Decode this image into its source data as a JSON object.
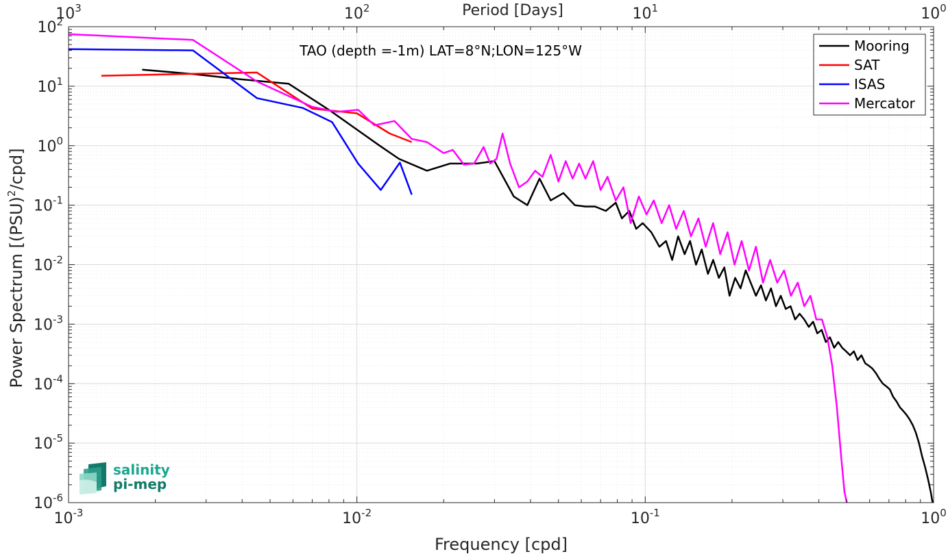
{
  "chart_data": {
    "type": "line",
    "title": "TAO (depth =-1m) LAT=8°N;LON=125°W",
    "xlabel": "Frequency [cpd]",
    "ylabel": "Power Spectrum [(PSU)",
    "ylabel_sup": "2",
    "ylabel_tail": "/cpd]",
    "x2label": "Period [Days]",
    "xscale": "log",
    "yscale": "log",
    "xlim": [
      0.001,
      1
    ],
    "ylim": [
      1e-06,
      100
    ],
    "grid": true,
    "legend_position": "top-right",
    "x_ticks": [
      {
        "value": 0.001,
        "base": "10",
        "exp": "-3"
      },
      {
        "value": 0.01,
        "base": "10",
        "exp": "-2"
      },
      {
        "value": 0.1,
        "base": "10",
        "exp": "-1"
      },
      {
        "value": 1,
        "base": "10",
        "exp": "0"
      }
    ],
    "y_ticks": [
      {
        "value": 100,
        "base": "10",
        "exp": "2"
      },
      {
        "value": 10,
        "base": "10",
        "exp": "1"
      },
      {
        "value": 1,
        "base": "10",
        "exp": "0"
      },
      {
        "value": 0.1,
        "base": "10",
        "exp": "-1"
      },
      {
        "value": 0.01,
        "base": "10",
        "exp": "-2"
      },
      {
        "value": 0.001,
        "base": "10",
        "exp": "-3"
      },
      {
        "value": 0.0001,
        "base": "10",
        "exp": "-4"
      },
      {
        "value": 1e-05,
        "base": "10",
        "exp": "-5"
      },
      {
        "value": 1e-06,
        "base": "10",
        "exp": "-6"
      }
    ],
    "x2_ticks": [
      {
        "value": 1000,
        "base": "10",
        "exp": "3"
      },
      {
        "value": 100,
        "base": "10",
        "exp": "2"
      },
      {
        "value": 10,
        "base": "10",
        "exp": "1"
      },
      {
        "value": 1,
        "base": "10",
        "exp": "0"
      }
    ],
    "series": [
      {
        "name": "Mooring",
        "color": "#000000",
        "x": [
          0.0018,
          0.0027,
          0.004,
          0.0058,
          0.008,
          0.0098,
          0.012,
          0.014,
          0.0175,
          0.021,
          0.026,
          0.03,
          0.035,
          0.039,
          0.043,
          0.047,
          0.052,
          0.057,
          0.062,
          0.067,
          0.073,
          0.079,
          0.083,
          0.088,
          0.093,
          0.098,
          0.105,
          0.112,
          0.118,
          0.124,
          0.13,
          0.137,
          0.143,
          0.15,
          0.157,
          0.165,
          0.172,
          0.18,
          0.188,
          0.196,
          0.205,
          0.214,
          0.223,
          0.232,
          0.242,
          0.252,
          0.262,
          0.273,
          0.284,
          0.295,
          0.307,
          0.319,
          0.331,
          0.343,
          0.356,
          0.369,
          0.382,
          0.395,
          0.409,
          0.423,
          0.437,
          0.452,
          0.467,
          0.482,
          0.497,
          0.513,
          0.529,
          0.545,
          0.562,
          0.579,
          0.596,
          0.613,
          0.631,
          0.649,
          0.667,
          0.686,
          0.705,
          0.724,
          0.744,
          0.764,
          0.784,
          0.805,
          0.826,
          0.847,
          0.868,
          0.89,
          0.912,
          0.934,
          0.956,
          0.978,
          0.992
        ],
        "y": [
          19,
          16,
          13,
          11,
          4,
          2,
          1,
          0.6,
          0.38,
          0.5,
          0.5,
          0.55,
          0.14,
          0.1,
          0.28,
          0.12,
          0.16,
          0.1,
          0.095,
          0.095,
          0.08,
          0.11,
          0.06,
          0.08,
          0.04,
          0.05,
          0.035,
          0.02,
          0.025,
          0.012,
          0.03,
          0.015,
          0.025,
          0.01,
          0.018,
          0.007,
          0.012,
          0.006,
          0.009,
          0.003,
          0.006,
          0.004,
          0.008,
          0.005,
          0.003,
          0.0045,
          0.0025,
          0.004,
          0.002,
          0.003,
          0.0018,
          0.002,
          0.0012,
          0.0015,
          0.0012,
          0.0009,
          0.0011,
          0.0007,
          0.0008,
          0.0005,
          0.0006,
          0.0004,
          0.0005,
          0.0004,
          0.00035,
          0.0003,
          0.00035,
          0.00025,
          0.0003,
          0.00022,
          0.0002,
          0.00018,
          0.00015,
          0.00012,
          0.0001,
          9e-05,
          8e-05,
          6e-05,
          5e-05,
          4e-05,
          3.5e-05,
          3e-05,
          2.5e-05,
          2e-05,
          1.5e-05,
          1e-05,
          6e-06,
          4e-06,
          2.5e-06,
          1.5e-06,
          1e-06
        ]
      },
      {
        "name": "SAT",
        "color": "#ff0000",
        "x": [
          0.0013,
          0.0045,
          0.007,
          0.01,
          0.013,
          0.0155
        ],
        "y": [
          15,
          17,
          4.2,
          3.5,
          1.6,
          1.15
        ]
      },
      {
        "name": "ISAS",
        "color": "#0000ff",
        "x": [
          0.001,
          0.0027,
          0.0045,
          0.0065,
          0.0082,
          0.0101,
          0.0121,
          0.0141,
          0.0155
        ],
        "y": [
          42,
          40,
          6.3,
          4.3,
          2.5,
          0.5,
          0.18,
          0.52,
          0.15
        ]
      },
      {
        "name": "Mercator",
        "color": "#ff00ff",
        "x": [
          0.001,
          0.0027,
          0.0045,
          0.007,
          0.0085,
          0.0101,
          0.0115,
          0.0135,
          0.0155,
          0.0175,
          0.02,
          0.0215,
          0.0235,
          0.0255,
          0.0275,
          0.029,
          0.0305,
          0.032,
          0.034,
          0.0365,
          0.039,
          0.0415,
          0.044,
          0.047,
          0.05,
          0.053,
          0.056,
          0.059,
          0.062,
          0.066,
          0.07,
          0.074,
          0.079,
          0.084,
          0.089,
          0.095,
          0.101,
          0.107,
          0.114,
          0.121,
          0.128,
          0.136,
          0.144,
          0.153,
          0.162,
          0.172,
          0.182,
          0.193,
          0.204,
          0.216,
          0.229,
          0.242,
          0.256,
          0.271,
          0.287,
          0.303,
          0.32,
          0.338,
          0.356,
          0.374,
          0.392,
          0.41,
          0.428,
          0.445,
          0.462,
          0.478,
          0.491,
          0.5
        ],
        "y": [
          75,
          60,
          12,
          4.5,
          3.7,
          4,
          2.2,
          2.6,
          1.3,
          1.15,
          0.75,
          0.85,
          0.48,
          0.5,
          0.95,
          0.5,
          0.6,
          1.6,
          0.5,
          0.2,
          0.25,
          0.38,
          0.3,
          0.7,
          0.25,
          0.55,
          0.28,
          0.5,
          0.28,
          0.55,
          0.18,
          0.3,
          0.12,
          0.2,
          0.05,
          0.14,
          0.07,
          0.12,
          0.05,
          0.1,
          0.04,
          0.08,
          0.03,
          0.06,
          0.02,
          0.05,
          0.015,
          0.035,
          0.01,
          0.025,
          0.008,
          0.02,
          0.005,
          0.012,
          0.005,
          0.008,
          0.003,
          0.005,
          0.002,
          0.003,
          0.0012,
          0.0012,
          0.0006,
          0.0002,
          4e-05,
          6e-06,
          1.5e-06,
          1e-06
        ]
      }
    ]
  },
  "logo": {
    "line1": "salinity",
    "line2": "pi-mep"
  }
}
